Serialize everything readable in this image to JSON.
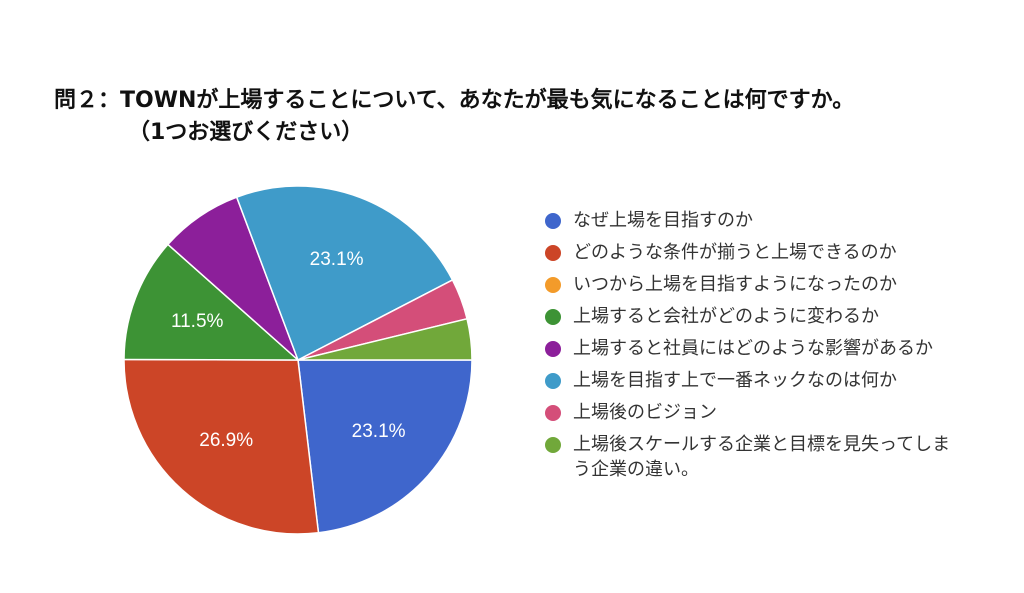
{
  "chart_data": {
    "type": "pie",
    "title": "問２：TOWNが上場することについて、あなたが最も気になることは何ですか。",
    "subtitle": "（1つお選びください）",
    "categories": [
      "なぜ上場を目指すのか",
      "どのような条件が揃うと上場できるのか",
      "いつから上場を目指すようになったのか",
      "上場すると会社がどのように変わるか",
      "上場すると社員にはどのような影響があるか",
      "上場を目指す上で一番ネックなのは何か",
      "上場後のビジョン",
      "上場後スケールする企業と目標を見失ってしまう企業の違い。"
    ],
    "values": [
      23.1,
      26.9,
      0,
      11.5,
      7.7,
      23.1,
      3.8,
      3.8
    ],
    "data_labels": [
      "23.1%",
      "26.9%",
      "",
      "11.5%",
      "",
      "23.1%",
      "",
      ""
    ],
    "colors": [
      "#3f66cc",
      "#cc4527",
      "#f39b2a",
      "#3d9335",
      "#8c1f9a",
      "#3f9bc9",
      "#d44e79",
      "#71a83a"
    ],
    "legend_position": "right",
    "start": "3 o'clock",
    "direction": "clockwise"
  }
}
